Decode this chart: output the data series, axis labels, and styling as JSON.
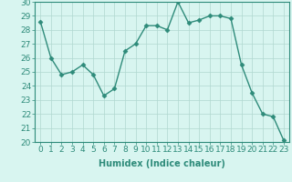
{
  "x": [
    0,
    1,
    2,
    3,
    4,
    5,
    6,
    7,
    8,
    9,
    10,
    11,
    12,
    13,
    14,
    15,
    16,
    17,
    18,
    19,
    20,
    21,
    22,
    23
  ],
  "y": [
    28.6,
    26.0,
    24.8,
    25.0,
    25.5,
    24.8,
    23.3,
    23.8,
    26.5,
    27.0,
    28.3,
    28.3,
    28.0,
    30.0,
    28.5,
    28.7,
    29.0,
    29.0,
    28.8,
    25.5,
    23.5,
    22.0,
    21.8,
    20.1
  ],
  "line_color": "#2e8b7a",
  "marker": "D",
  "marker_size": 2.5,
  "bg_color": "#d8f5f0",
  "grid_color": "#b0d8d0",
  "xlabel": "Humidex (Indice chaleur)",
  "ylim": [
    20,
    30
  ],
  "xlim_min": -0.5,
  "xlim_max": 23.5,
  "yticks": [
    20,
    21,
    22,
    23,
    24,
    25,
    26,
    27,
    28,
    29,
    30
  ],
  "xticks": [
    0,
    1,
    2,
    3,
    4,
    5,
    6,
    7,
    8,
    9,
    10,
    11,
    12,
    13,
    14,
    15,
    16,
    17,
    18,
    19,
    20,
    21,
    22,
    23
  ],
  "label_fontsize": 7,
  "tick_fontsize": 6.5
}
